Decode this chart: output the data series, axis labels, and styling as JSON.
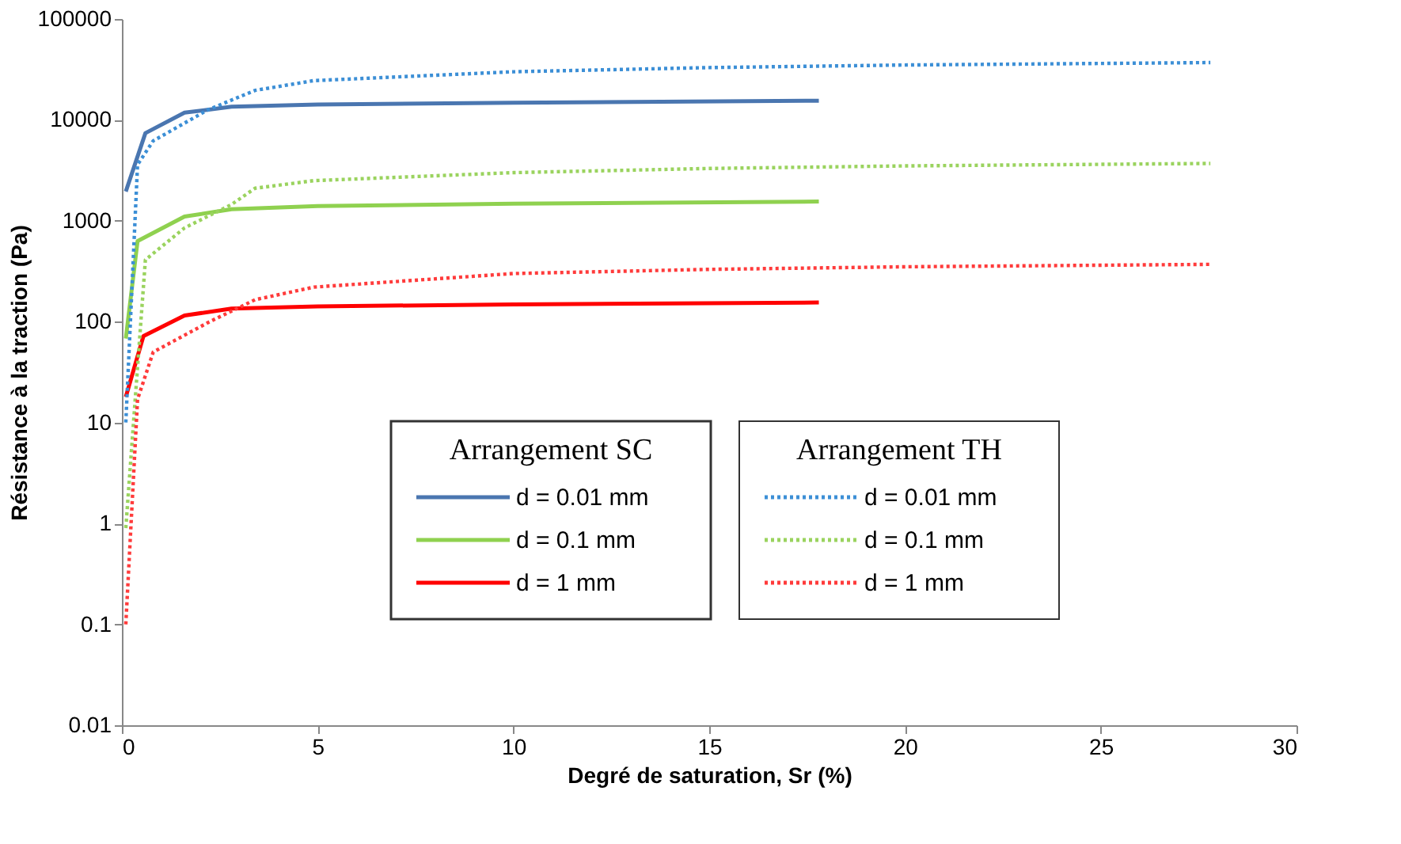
{
  "chart_data": {
    "type": "line",
    "xlabel": "Degré de saturation, Sr (%)",
    "ylabel": "Résistance à la traction (Pa)",
    "log": "y",
    "xlim": [
      0,
      30
    ],
    "xticks": [
      0,
      5,
      10,
      15,
      20,
      25,
      30
    ],
    "ylim": [
      0.01,
      100000
    ],
    "yticks": [
      0.01,
      0.1,
      1,
      10,
      100,
      1000,
      10000,
      100000
    ],
    "grid": false,
    "legend": "bottom",
    "legend_title": [
      "Arrangement SC",
      "Arrangement TH"
    ],
    "marker": "none",
    "series": [
      {
        "name": "d = 0.01 mm",
        "color": "#4a76b0",
        "line_style": "solid",
        "x": [
          0.1,
          0.6,
          1.6,
          2.8,
          5,
          10,
          17.8
        ],
        "values": [
          1950,
          7400,
          11800,
          13500,
          14200,
          14800,
          15500
        ]
      },
      {
        "name": "d = 0.1 mm",
        "color": "#8fd14f",
        "line_style": "solid",
        "x": [
          0.1,
          0.4,
          1.6,
          2.8,
          5,
          10,
          17.8
        ],
        "values": [
          68,
          630,
          1100,
          1300,
          1400,
          1480,
          1550
        ]
      },
      {
        "name": "d = 1 mm",
        "color": "#ff0000",
        "line_style": "solid",
        "x": [
          0.1,
          0.55,
          1.6,
          2.8,
          5,
          10,
          17.8
        ],
        "values": [
          18,
          72,
          115,
          135,
          142,
          148,
          155
        ]
      },
      {
        "name": "d = 0.01 mm",
        "color": "#3c8fd6",
        "line_style": "dotted",
        "x": [
          0.1,
          0.4,
          0.8,
          2.2,
          3.4,
          4.9,
          10,
          15,
          20,
          27.8
        ],
        "values": [
          10,
          3600,
          6200,
          12600,
          19600,
          24500,
          30000,
          33000,
          35000,
          37000
        ]
      },
      {
        "name": "d = 0.1 mm",
        "color": "#9ad35e",
        "line_style": "dotted",
        "x": [
          0.1,
          0.6,
          1.6,
          2.8,
          3.4,
          4.9,
          10,
          15,
          20,
          27.8
        ],
        "values": [
          0.9,
          410,
          850,
          1450,
          2100,
          2500,
          3000,
          3300,
          3500,
          3700
        ]
      },
      {
        "name": "d = 1 mm",
        "color": "#ff3b3b",
        "line_style": "dotted",
        "x": [
          0.1,
          0.4,
          0.8,
          2.2,
          3.4,
          4.9,
          10,
          15,
          20,
          27.8
        ],
        "values": [
          0.1,
          17,
          50,
          98,
          165,
          220,
          300,
          330,
          350,
          370
        ]
      }
    ]
  }
}
